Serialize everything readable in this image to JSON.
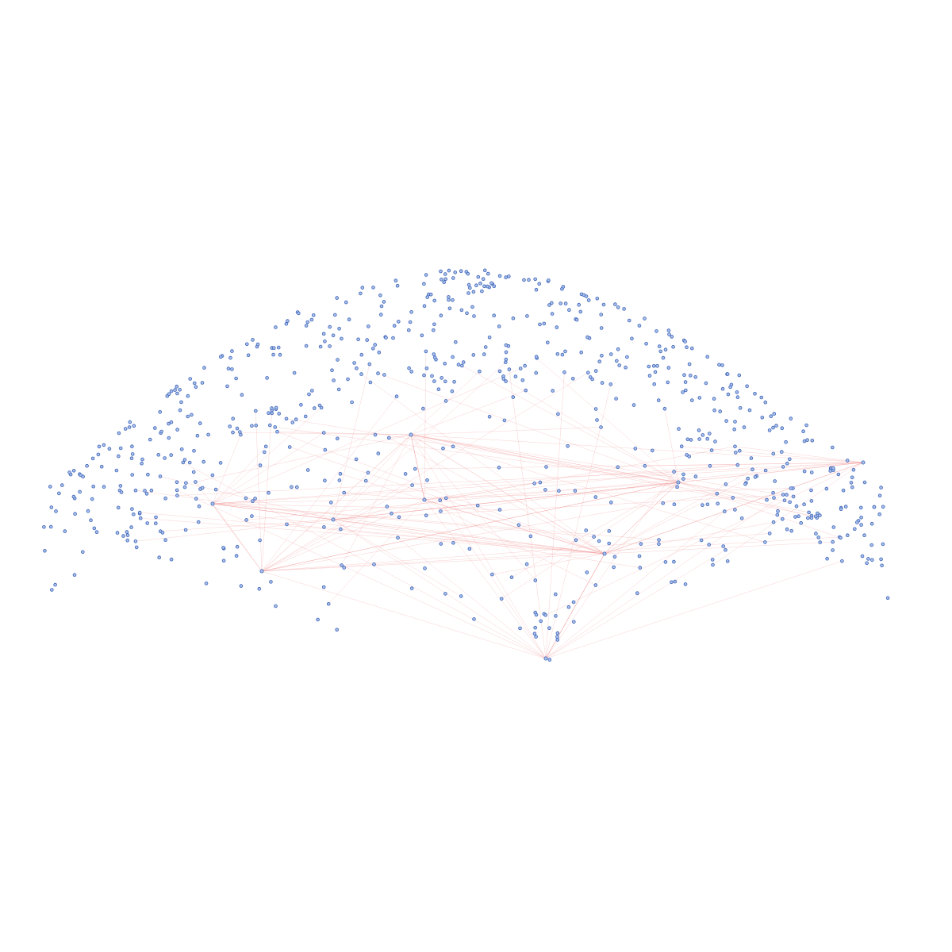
{
  "diagram": {
    "type": "network-graph",
    "background": "#ffffff",
    "colors": {
      "node_fill": "#a9c0ea",
      "node_stroke": "#3d63b8",
      "edge": "#f29a9a"
    },
    "hubs": [
      {
        "id": "H1",
        "name": "sink-bottom-center"
      },
      {
        "id": "H2",
        "name": "hub-right-center"
      },
      {
        "id": "H3",
        "name": "hub-right-mid"
      },
      {
        "id": "H4",
        "name": "hub-center"
      },
      {
        "id": "H5",
        "name": "hub-left-center"
      },
      {
        "id": "H6",
        "name": "hub-left"
      },
      {
        "id": "H7",
        "name": "hub-center-top"
      },
      {
        "id": "H8",
        "name": "hub-far-right"
      },
      {
        "id": "H9",
        "name": "hub-mid-left"
      }
    ],
    "node_count": 760,
    "edge_count": 150
  }
}
